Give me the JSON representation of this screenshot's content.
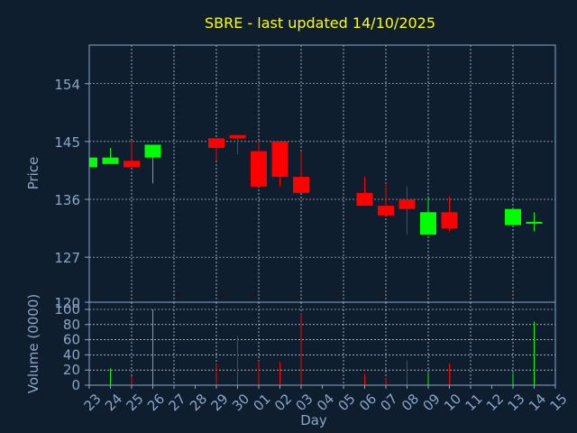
{
  "chart_data": {
    "type": "candlestick",
    "title": "SBRE - last updated 14/10/2025",
    "xlabel": "Day",
    "price_panel": {
      "ylabel": "Price",
      "ylim": [
        120,
        160
      ],
      "yticks": [
        "154",
        "145",
        "136",
        "127",
        "120"
      ],
      "ytick_values": [
        154,
        145,
        136,
        127,
        120
      ]
    },
    "volume_panel": {
      "ylabel": "Volume (0000)",
      "ylim": [
        0,
        100
      ],
      "yticks": [
        "100",
        "80",
        "60",
        "40",
        "20",
        "0"
      ],
      "ytick_values": [
        100,
        80,
        60,
        40,
        20,
        0
      ]
    },
    "x_ticks": [
      "23",
      "24",
      "25",
      "26",
      "27",
      "28",
      "29",
      "30",
      "01",
      "02",
      "03",
      "04",
      "05",
      "06",
      "07",
      "08",
      "09",
      "10",
      "11",
      "12",
      "13",
      "14",
      "15"
    ],
    "candles": [
      {
        "i": 0,
        "open": 141.0,
        "close": 142.5,
        "high": 142.5,
        "low": 141.0,
        "volume": 0
      },
      {
        "i": 1,
        "open": 141.5,
        "close": 142.5,
        "high": 144.0,
        "low": 141.5,
        "volume": 22
      },
      {
        "i": 2,
        "open": 142.0,
        "close": 141.0,
        "high": 145.0,
        "low": 141.0,
        "volume": 12
      },
      {
        "i": 3,
        "open": 142.5,
        "close": 144.5,
        "high": 144.5,
        "low": 138.5,
        "volume": 100
      },
      {
        "i": 6,
        "open": 145.5,
        "close": 144.0,
        "high": 145.5,
        "low": 142.0,
        "volume": 28
      },
      {
        "i": 7,
        "open": 146.0,
        "close": 145.5,
        "high": 146.0,
        "low": 143.0,
        "volume": 65
      },
      {
        "i": 8,
        "open": 143.5,
        "close": 138.0,
        "high": 145.0,
        "low": 138.0,
        "volume": 32
      },
      {
        "i": 9,
        "open": 145.0,
        "close": 139.5,
        "high": 145.0,
        "low": 138.0,
        "volume": 31
      },
      {
        "i": 10,
        "open": 139.5,
        "close": 137.0,
        "high": 143.5,
        "low": 137.0,
        "volume": 95
      },
      {
        "i": 13,
        "open": 137.0,
        "close": 135.0,
        "high": 139.5,
        "low": 135.0,
        "volume": 15
      },
      {
        "i": 14,
        "open": 135.0,
        "close": 133.5,
        "high": 138.5,
        "low": 133.5,
        "volume": 10
      },
      {
        "i": 15,
        "open": 136.0,
        "close": 134.5,
        "high": 138.0,
        "low": 130.5,
        "volume": 33
      },
      {
        "i": 16,
        "open": 130.5,
        "close": 134.0,
        "high": 136.5,
        "low": 130.5,
        "volume": 16
      },
      {
        "i": 17,
        "open": 134.0,
        "close": 131.5,
        "high": 136.5,
        "low": 131.0,
        "volume": 29
      },
      {
        "i": 20,
        "open": 132.0,
        "close": 134.5,
        "high": 134.5,
        "low": 132.0,
        "volume": 16
      },
      {
        "i": 21,
        "open": 132.5,
        "close": 132.5,
        "high": 134.0,
        "low": 131.0,
        "volume": 84
      }
    ]
  },
  "colors": {
    "background": "#0f1e2f",
    "axes": "#8aa6c6",
    "grid": "#ffffff",
    "title": "#ffff00",
    "label": "#8aa6c6",
    "up": "#00ff00",
    "down": "#ff0000"
  }
}
